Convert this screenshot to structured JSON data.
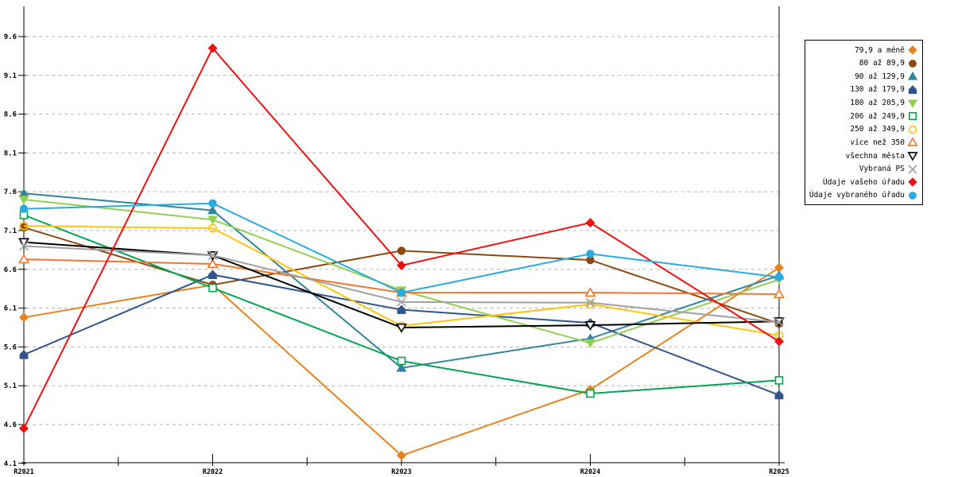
{
  "chart_data": {
    "type": "line",
    "title": "",
    "xlabel": "",
    "ylabel": "",
    "categories": [
      "R2021",
      "R2022",
      "R2023",
      "R2024",
      "R2025"
    ],
    "y_ticks": [
      9.6,
      9.1,
      8.6,
      8.1,
      7.6,
      7.1,
      6.6,
      6.1,
      5.6,
      5.1,
      4.6,
      4.1
    ],
    "ylim": [
      4.1,
      9.85
    ],
    "grid": "horizontal-dashed",
    "legend_position": "right",
    "colors": {
      "axis": "#000000",
      "gridline": "#b3b3b3",
      "background": "#ffffff"
    },
    "series": [
      {
        "name": "79,9 a méně",
        "color": "#e8821e",
        "marker": "diamond",
        "fill": "solid",
        "values": [
          5.98,
          6.4,
          4.2,
          5.05,
          6.62
        ]
      },
      {
        "name": "80 až 89,9",
        "color": "#8c4a10",
        "marker": "circle",
        "fill": "solid",
        "values": [
          7.14,
          6.4,
          6.84,
          6.72,
          5.9
        ]
      },
      {
        "name": "90 až 129,9",
        "color": "#31859c",
        "marker": "triangle-up",
        "fill": "solid",
        "values": [
          7.58,
          7.36,
          5.33,
          5.71,
          6.52
        ]
      },
      {
        "name": "130 až 179,9",
        "color": "#31568c",
        "marker": "pentagon",
        "fill": "solid",
        "values": [
          5.5,
          6.53,
          6.08,
          5.91,
          4.98
        ]
      },
      {
        "name": "180 až 205,9",
        "color": "#92d050",
        "marker": "triangle-down",
        "fill": "solid",
        "values": [
          7.5,
          7.24,
          6.33,
          5.65,
          6.47
        ]
      },
      {
        "name": "206 až 249,9",
        "color": "#00a650",
        "marker": "square",
        "fill": "open",
        "values": [
          7.3,
          6.36,
          5.42,
          5.0,
          5.17
        ]
      },
      {
        "name": "250 až 349,9",
        "color": "#ffc40c",
        "marker": "circle",
        "fill": "none",
        "values": [
          7.16,
          7.13,
          5.87,
          6.15,
          5.75
        ]
      },
      {
        "name": "více než 350",
        "color": "#f2762c",
        "marker": "triangle-up",
        "fill": "open",
        "values": [
          6.73,
          6.67,
          6.3,
          6.3,
          6.28
        ]
      },
      {
        "name": "všechna města",
        "color": "#000000",
        "marker": "triangle-down",
        "fill": "open",
        "values": [
          6.95,
          6.78,
          5.85,
          5.88,
          5.93
        ]
      },
      {
        "name": "Vybraná PS",
        "color": "#a0a0a0",
        "marker": "x",
        "fill": "none",
        "values": [
          6.9,
          6.78,
          6.18,
          6.17,
          5.92
        ]
      },
      {
        "name": "Údaje vašeho úřadu",
        "color": "#ee1111",
        "marker": "diamond",
        "fill": "solid",
        "values": [
          4.55,
          9.45,
          6.65,
          7.2,
          5.67
        ]
      },
      {
        "name": "Údaje vybraného úřadu",
        "color": "#29abe2",
        "marker": "circle",
        "fill": "solid",
        "values": [
          7.38,
          7.45,
          6.3,
          6.8,
          6.5
        ]
      }
    ]
  }
}
